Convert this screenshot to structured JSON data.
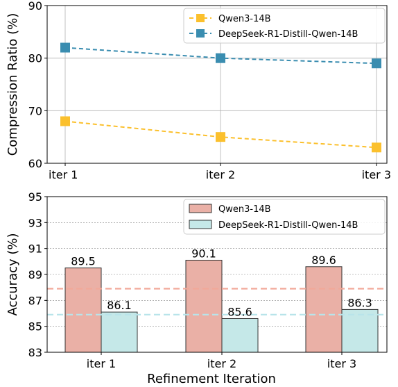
{
  "chart_data": [
    {
      "type": "line",
      "title": "",
      "xlabel": "",
      "ylabel": "Compression Ratio (%)",
      "categories": [
        "iter 1",
        "iter 2",
        "iter 3"
      ],
      "ylim": [
        60,
        90
      ],
      "yticks": [
        60,
        70,
        80,
        90
      ],
      "grid": true,
      "legend_position": "top-right",
      "series": [
        {
          "name": "Qwen3-14B",
          "values": [
            68,
            65,
            63
          ],
          "color": "#fbc02d",
          "style": "dashed",
          "marker": "square"
        },
        {
          "name": "DeepSeek-R1-Distill-Qwen-14B",
          "values": [
            82,
            80,
            79
          ],
          "color": "#3a8db0",
          "style": "dashed",
          "marker": "square"
        }
      ]
    },
    {
      "type": "bar",
      "title": "",
      "xlabel": "Refinement Iteration",
      "ylabel": "Accuracy (%)",
      "categories": [
        "iter 1",
        "iter 2",
        "iter 3"
      ],
      "ylim": [
        83,
        95
      ],
      "yticks": [
        83,
        85,
        87,
        89,
        91,
        93,
        95
      ],
      "grid": true,
      "legend_position": "top-right",
      "series": [
        {
          "name": "Qwen3-14B",
          "values": [
            89.5,
            90.1,
            89.6
          ],
          "labels": [
            "89.5",
            "90.1",
            "89.6"
          ],
          "color": "#eab0a6",
          "baseline": 87.9,
          "baseline_color": "#f2a899"
        },
        {
          "name": "DeepSeek-R1-Distill-Qwen-14B",
          "values": [
            86.1,
            85.6,
            86.3
          ],
          "labels": [
            "86.1",
            "85.6",
            "86.3"
          ],
          "color": "#c5e8e8",
          "baseline": 85.9,
          "baseline_color": "#b8e4ea"
        }
      ]
    }
  ]
}
